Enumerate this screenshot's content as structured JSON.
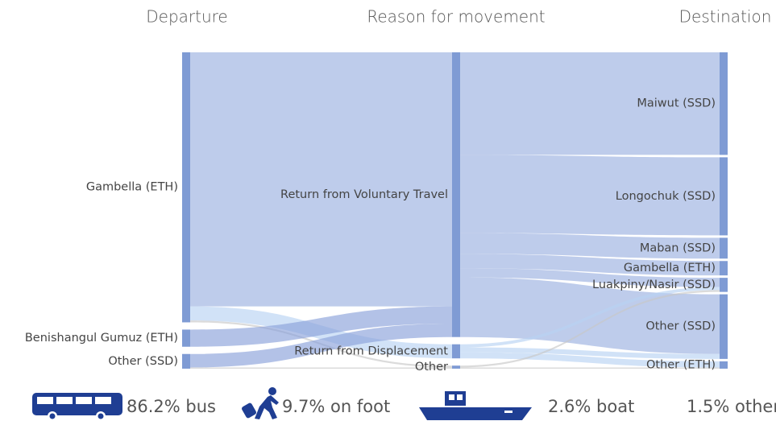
{
  "chart_data": {
    "type": "sankey",
    "column_titles": [
      "Departure",
      "Reason for movement",
      "Destination"
    ],
    "node_color": "#7f9bd4",
    "nodes": [
      {
        "label": "Gambella (ETH)",
        "column": 0
      },
      {
        "label": "Benishangul Gumuz (ETH)",
        "column": 0
      },
      {
        "label": "Other (SSD)",
        "column": 0
      },
      {
        "label": "Return from Voluntary Travel",
        "column": 1
      },
      {
        "label": "Return from Displacement",
        "column": 1
      },
      {
        "label": "Other",
        "column": 1
      },
      {
        "label": "Maiwut (SSD)",
        "column": 2
      },
      {
        "label": "Longochuk (SSD)",
        "column": 2
      },
      {
        "label": "Maban (SSD)",
        "column": 2
      },
      {
        "label": "Gambella (ETH)",
        "column": 2
      },
      {
        "label": "Luakpiny/Nasir (SSD)",
        "column": 2
      },
      {
        "label": "Other (SSD)",
        "column": 2
      },
      {
        "label": "Other (ETH)",
        "column": 2
      }
    ],
    "links": [
      {
        "source": 0,
        "target": 3,
        "value": 83.0,
        "color": "#9bb0e0"
      },
      {
        "source": 0,
        "target": 4,
        "value": 4.6,
        "color": "#b8d3f2"
      },
      {
        "source": 0,
        "target": 5,
        "value": 0.6,
        "color": "#c8c8c8"
      },
      {
        "source": 1,
        "target": 3,
        "value": 5.6,
        "color": "#8aa2da"
      },
      {
        "source": 2,
        "target": 3,
        "value": 4.4,
        "color": "#8aa2da"
      },
      {
        "source": 2,
        "target": 5,
        "value": 0.4,
        "color": "#c8c8c8"
      },
      {
        "source": 3,
        "target": 6,
        "value": 33.5,
        "color": "#9bb0e0"
      },
      {
        "source": 3,
        "target": 7,
        "value": 25.5,
        "color": "#9bb0e0"
      },
      {
        "source": 3,
        "target": 8,
        "value": 6.8,
        "color": "#9bb0e0"
      },
      {
        "source": 3,
        "target": 9,
        "value": 4.7,
        "color": "#9bb0e0"
      },
      {
        "source": 3,
        "target": 10,
        "value": 3.0,
        "color": "#9bb0e0"
      },
      {
        "source": 3,
        "target": 11,
        "value": 19.5,
        "color": "#9bb0e0"
      },
      {
        "source": 4,
        "target": 10,
        "value": 1.0,
        "color": "#b8d3f2"
      },
      {
        "source": 4,
        "target": 11,
        "value": 1.6,
        "color": "#b8d3f2"
      },
      {
        "source": 4,
        "target": 12,
        "value": 2.0,
        "color": "#b8d3f2"
      },
      {
        "source": 5,
        "target": 10,
        "value": 0.6,
        "color": "#c8c8c8"
      },
      {
        "source": 5,
        "target": 12,
        "value": 0.4,
        "color": "#c8c8c8"
      }
    ],
    "transport": [
      "86.2% bus",
      "9.7% on foot",
      "2.6% boat",
      "1.5% other"
    ]
  }
}
